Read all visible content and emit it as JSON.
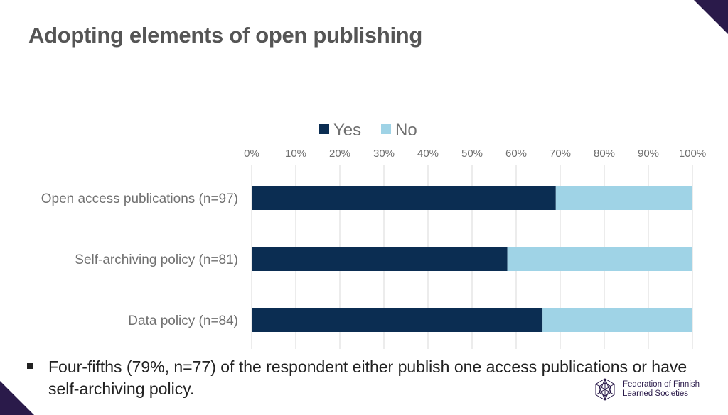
{
  "slide": {
    "title": "Adopting elements of open publishing",
    "bullet": "Four-fifths (79%, n=77) of the respondent either publish one access publications or have self-archiving policy."
  },
  "logo": {
    "line1": "Federation of Finnish",
    "line2": "Learned Societies",
    "icon": "snowflake-lattice-icon"
  },
  "colors": {
    "yes": "#0b2d52",
    "no": "#9fd3e6",
    "axis_text": "#707070",
    "grid": "#d9d9d9",
    "accent": "#2a1a4a"
  },
  "chart_data": {
    "type": "bar",
    "orientation": "horizontal",
    "stacked": true,
    "title": "",
    "categories": [
      "Open access publications (n=97)",
      "Self-archiving policy (n=81)",
      "Data policy (n=84)"
    ],
    "series": [
      {
        "name": "Yes",
        "values": [
          69,
          58,
          66
        ]
      },
      {
        "name": "No",
        "values": [
          31,
          42,
          34
        ]
      }
    ],
    "x_ticks": [
      "0%",
      "10%",
      "20%",
      "30%",
      "40%",
      "50%",
      "60%",
      "70%",
      "80%",
      "90%",
      "100%"
    ],
    "xlim": [
      0,
      100
    ],
    "grid": true,
    "legend": "top-center",
    "axis_position": "top"
  }
}
